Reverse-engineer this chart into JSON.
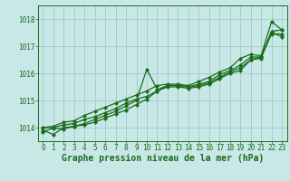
{
  "title": "Graphe pression niveau de la mer (hPa)",
  "bg_color": "#c8e8e8",
  "grid_color": "#a0c8c8",
  "line_color": "#1a6b1a",
  "marker_color": "#1a6b1a",
  "ylim": [
    1013.5,
    1018.5
  ],
  "xlim": [
    -0.5,
    23.5
  ],
  "yticks": [
    1014,
    1015,
    1016,
    1017,
    1018
  ],
  "xticks": [
    0,
    1,
    2,
    3,
    4,
    5,
    6,
    7,
    8,
    9,
    10,
    11,
    12,
    13,
    14,
    15,
    16,
    17,
    18,
    19,
    20,
    21,
    22,
    23
  ],
  "series": [
    [
      1013.85,
      1013.98,
      1013.95,
      1014.05,
      1014.1,
      1014.2,
      1014.35,
      1014.5,
      1014.65,
      1014.85,
      1015.05,
      1015.35,
      1015.5,
      1015.5,
      1015.45,
      1015.5,
      1015.6,
      1015.8,
      1016.0,
      1016.1,
      1016.5,
      1016.55,
      1017.5,
      1017.35
    ],
    [
      1013.9,
      1013.75,
      1014.0,
      1014.05,
      1014.15,
      1014.3,
      1014.45,
      1014.6,
      1014.8,
      1015.0,
      1016.15,
      1015.4,
      1015.55,
      1015.55,
      1015.5,
      1015.55,
      1015.65,
      1015.85,
      1016.05,
      1016.2,
      1016.5,
      1016.6,
      1017.45,
      1017.45
    ],
    [
      1014.0,
      1014.0,
      1014.1,
      1014.15,
      1014.3,
      1014.4,
      1014.55,
      1014.7,
      1014.9,
      1015.05,
      1015.15,
      1015.35,
      1015.55,
      1015.55,
      1015.5,
      1015.6,
      1015.7,
      1015.95,
      1016.1,
      1016.3,
      1016.6,
      1016.6,
      1017.55,
      1017.6
    ],
    [
      1014.0,
      1014.05,
      1014.2,
      1014.25,
      1014.45,
      1014.6,
      1014.75,
      1014.9,
      1015.05,
      1015.2,
      1015.35,
      1015.55,
      1015.6,
      1015.6,
      1015.55,
      1015.7,
      1015.85,
      1016.05,
      1016.2,
      1016.55,
      1016.7,
      1016.65,
      1017.9,
      1017.6
    ]
  ],
  "title_fontsize": 7,
  "tick_fontsize": 5.5,
  "linewidth": 0.9,
  "markersize": 2.2
}
